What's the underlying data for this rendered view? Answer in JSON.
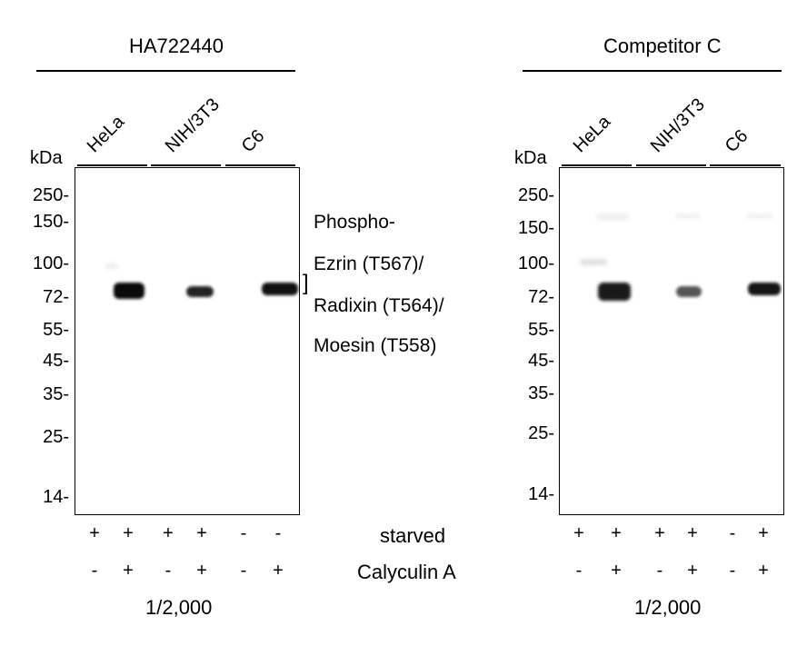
{
  "panels": [
    {
      "title": "HA722440",
      "kda_label": "kDa",
      "lanes": [
        "HeLa",
        "NIH/3T3",
        "C6"
      ],
      "markers": [
        "250-",
        "150-",
        "100-",
        "72-",
        "55-",
        "45-",
        "35-",
        "25-",
        "14-"
      ],
      "starved": [
        "+",
        "+",
        "+",
        "+",
        "-",
        "-"
      ],
      "calyculin": [
        "-",
        "+",
        "-",
        "+",
        "-",
        "+"
      ],
      "dilution": "1/2,000"
    },
    {
      "title": "Competitor C",
      "kda_label": "kDa",
      "lanes": [
        "HeLa",
        "NIH/3T3",
        "C6"
      ],
      "markers": [
        "250-",
        "150-",
        "100-",
        "72-",
        "55-",
        "45-",
        "35-",
        "25-",
        "14-"
      ],
      "starved": [
        "+",
        "+",
        "+",
        "+",
        "-",
        "+"
      ],
      "calyculin": [
        "-",
        "+",
        "-",
        "+",
        "-",
        "+"
      ],
      "dilution": "1/2,000"
    }
  ],
  "target": {
    "line1": "Phospho-",
    "line2": "Ezrin (T567)/",
    "line3": "Radixin (T564)/",
    "line4": "Moesin (T558)",
    "bracket": "]"
  },
  "row_labels": {
    "starved": "starved",
    "calyculin": "Calyculin A"
  }
}
